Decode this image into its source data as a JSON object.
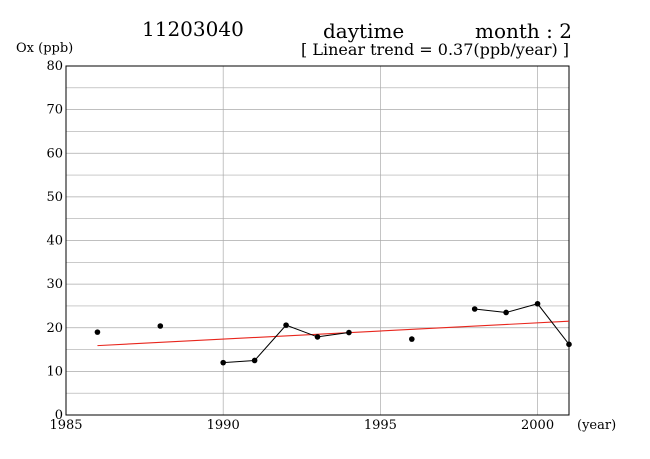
{
  "header": {
    "station": "11203040",
    "period": "daytime",
    "month": "month : 2",
    "trend": "[ Linear trend = 0.37(ppb/year) ]"
  },
  "chart_data": {
    "type": "scatter",
    "title": "",
    "xlabel": "(year)",
    "ylabel": "Ox (ppb)",
    "xlim": [
      1985,
      2001
    ],
    "ylim": [
      0,
      80
    ],
    "xticks": [
      1985,
      1990,
      1995,
      2000
    ],
    "yticks": [
      0,
      10,
      20,
      30,
      40,
      50,
      60,
      70,
      80
    ],
    "grid": true,
    "points": [
      {
        "x": 1986,
        "y": 19.0
      },
      {
        "x": 1988,
        "y": 20.4
      },
      {
        "x": 1990,
        "y": 12.0
      },
      {
        "x": 1991,
        "y": 12.5
      },
      {
        "x": 1992,
        "y": 20.6
      },
      {
        "x": 1993,
        "y": 17.9
      },
      {
        "x": 1994,
        "y": 18.9
      },
      {
        "x": 1996,
        "y": 17.4
      },
      {
        "x": 1998,
        "y": 24.3
      },
      {
        "x": 1999,
        "y": 23.5
      },
      {
        "x": 2000,
        "y": 25.5
      },
      {
        "x": 2001,
        "y": 16.2
      }
    ],
    "connected_segments": [
      [
        1990,
        1994
      ],
      [
        1998,
        2001
      ]
    ],
    "trend_line": {
      "x": [
        1986,
        2001
      ],
      "y": [
        15.9,
        21.5
      ],
      "color": "#e8261d"
    },
    "colors": {
      "points": "#000000",
      "line": "#000000",
      "grid": "#aaaaaa"
    }
  }
}
